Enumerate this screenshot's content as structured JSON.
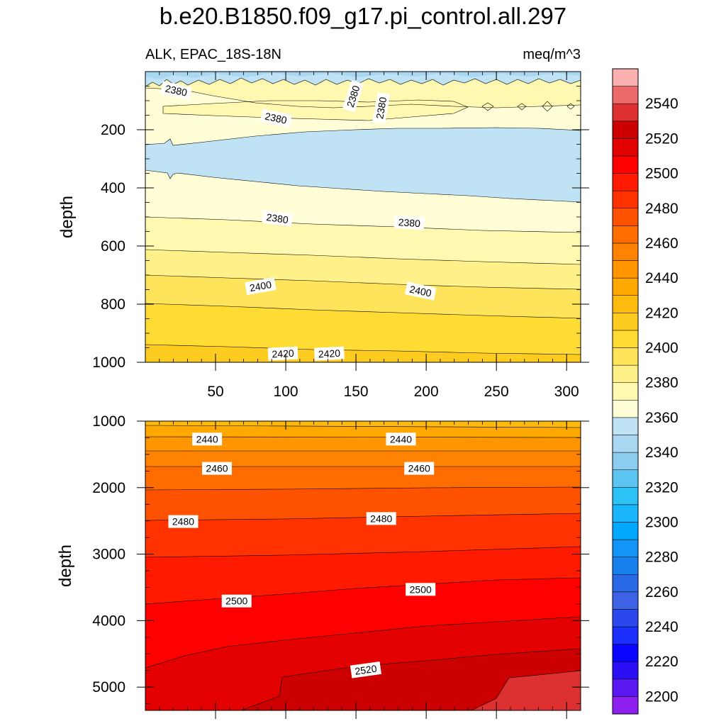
{
  "chart_data": {
    "type": "contour",
    "title": "b.e20.B1850.f09_g17.pi_control.all.297",
    "variable_label": "ALK, EPAC_18S-18N",
    "units": "meq/m^3",
    "ylabel": "depth",
    "x_ticks": [
      50,
      100,
      150,
      200,
      250,
      300
    ],
    "xlim": [
      0,
      310
    ],
    "panels": [
      {
        "name": "upper",
        "ylim": [
          0,
          1000
        ],
        "y_ticks": [
          200,
          400,
          600,
          800,
          1000
        ],
        "contour_labels": [
          {
            "text": "2380",
            "x": 22,
            "y": 65,
            "angle": 12
          },
          {
            "text": "2380",
            "x": 148,
            "y": 85,
            "angle": -72
          },
          {
            "text": "2380",
            "x": 168,
            "y": 125,
            "angle": -80
          },
          {
            "text": "2380",
            "x": 93,
            "y": 160,
            "angle": 12
          },
          {
            "text": "2380",
            "x": 94,
            "y": 505,
            "angle": 8
          },
          {
            "text": "2380",
            "x": 188,
            "y": 520,
            "angle": 4
          },
          {
            "text": "2400",
            "x": 82,
            "y": 738,
            "angle": -10
          },
          {
            "text": "2400",
            "x": 196,
            "y": 755,
            "angle": 12
          },
          {
            "text": "2420",
            "x": 98,
            "y": 970,
            "angle": -3
          },
          {
            "text": "2420",
            "x": 131,
            "y": 970,
            "angle": -3
          }
        ]
      },
      {
        "name": "lower",
        "ylim": [
          1000,
          5350
        ],
        "y_ticks": [
          1000,
          2000,
          3000,
          4000,
          5000
        ],
        "contour_labels": [
          {
            "text": "2440",
            "x": 44,
            "y": 1270,
            "angle": 0
          },
          {
            "text": "2440",
            "x": 182,
            "y": 1270,
            "angle": 0
          },
          {
            "text": "2460",
            "x": 51,
            "y": 1710,
            "angle": 0
          },
          {
            "text": "2460",
            "x": 195,
            "y": 1710,
            "angle": 0
          },
          {
            "text": "2480",
            "x": 27,
            "y": 2510,
            "angle": 0
          },
          {
            "text": "2480",
            "x": 168,
            "y": 2465,
            "angle": 0
          },
          {
            "text": "2500",
            "x": 65,
            "y": 3705,
            "angle": 0
          },
          {
            "text": "2500",
            "x": 196,
            "y": 3530,
            "angle": 0
          },
          {
            "text": "2520",
            "x": 157,
            "y": 4740,
            "angle": -8
          }
        ]
      }
    ],
    "colorbar": {
      "levels": [
        2200,
        2210,
        2220,
        2230,
        2240,
        2250,
        2260,
        2270,
        2280,
        2290,
        2300,
        2310,
        2320,
        2330,
        2340,
        2350,
        2360,
        2370,
        2380,
        2390,
        2400,
        2410,
        2420,
        2430,
        2440,
        2450,
        2460,
        2470,
        2480,
        2490,
        2500,
        2510,
        2520,
        2530,
        2540,
        2550
      ],
      "labels": [
        "2200",
        "2220",
        "2240",
        "2260",
        "2280",
        "2300",
        "2320",
        "2340",
        "2360",
        "2380",
        "2400",
        "2420",
        "2440",
        "2460",
        "2480",
        "2500",
        "2520",
        "2540"
      ],
      "colors": [
        "#8d1ff0",
        "#5a18f0",
        "#2c10f5",
        "#0a05ff",
        "#1c2fff",
        "#2a48ee",
        "#3d62e4",
        "#2a6ae6",
        "#1880ec",
        "#1395f7",
        "#00a8ff",
        "#1ab6fb",
        "#2cc2f6",
        "#5cc5f2",
        "#8cccee",
        "#a9d7f1",
        "#bfe3f5",
        "#fffed6",
        "#fff8b0",
        "#fff18a",
        "#fee45a",
        "#fedc33",
        "#fecb20",
        "#feba0d",
        "#ffa800",
        "#ff9600",
        "#ff8200",
        "#ff6d00",
        "#ff5200",
        "#ff3200",
        "#ff1a00",
        "#ff0000",
        "#e30000",
        "#cc0000",
        "#dd3030",
        "#ec6a6a",
        "#fbb0b0"
      ]
    }
  }
}
